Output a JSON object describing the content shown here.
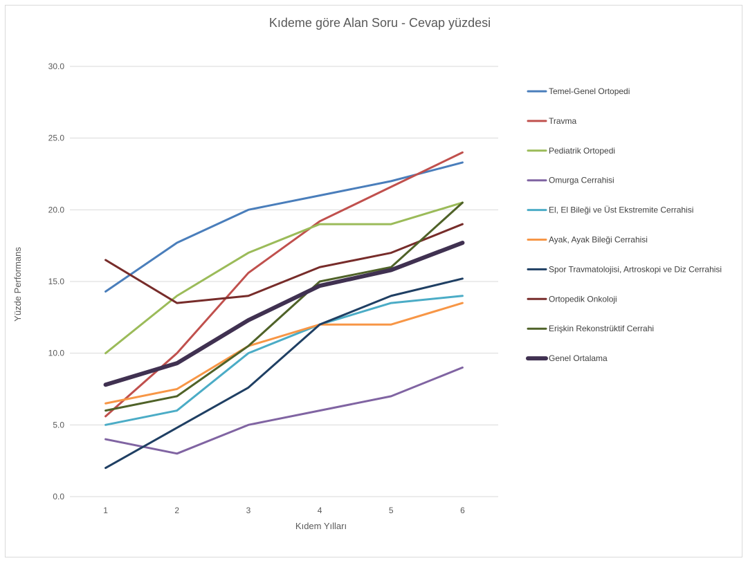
{
  "chart_data": {
    "type": "line",
    "title": "Kıdeme göre Alan Soru - Cevap yüzdesi",
    "xlabel": "Kıdem Yılları",
    "ylabel": "Yüzde Performans",
    "x": [
      "1",
      "2",
      "3",
      "4",
      "5",
      "6"
    ],
    "ylim": [
      0,
      30
    ],
    "yticks": [
      "0.0",
      "5.0",
      "10.0",
      "15.0",
      "20.0",
      "25.0",
      "30.0"
    ],
    "grid": true,
    "legend": "right",
    "series": [
      {
        "name": "Temel-Genel Ortopedi",
        "color": "#4a7ebb",
        "width": "normal",
        "values": [
          14.3,
          17.7,
          20.0,
          21.0,
          22.0,
          23.3
        ]
      },
      {
        "name": "Travma",
        "color": "#c0504d",
        "width": "normal",
        "values": [
          5.6,
          10.0,
          15.6,
          19.2,
          21.6,
          24.0
        ]
      },
      {
        "name": "Pediatrik Ortopedi",
        "color": "#9bbb59",
        "width": "normal",
        "values": [
          10.0,
          14.0,
          17.0,
          19.0,
          19.0,
          20.5
        ]
      },
      {
        "name": "Omurga Cerrahisi",
        "color": "#8064a2",
        "width": "normal",
        "values": [
          4.0,
          3.0,
          5.0,
          6.0,
          7.0,
          9.0
        ]
      },
      {
        "name": "El, El Bileği ve Üst Ekstremite Cerrahisi",
        "color": "#4bacc6",
        "width": "normal",
        "values": [
          5.0,
          6.0,
          10.0,
          12.0,
          13.5,
          14.0
        ]
      },
      {
        "name": "Ayak, Ayak Bileği Cerrahisi",
        "color": "#f79646",
        "width": "normal",
        "values": [
          6.5,
          7.5,
          10.5,
          12.0,
          12.0,
          13.5
        ]
      },
      {
        "name": "Spor Travmatolojisi,  Artroskopi ve Diz Cerrahisi",
        "color": "#1f3f63",
        "width": "normal",
        "values": [
          2.0,
          4.8,
          7.6,
          12.0,
          14.0,
          15.2
        ]
      },
      {
        "name": "Ortopedik Onkoloji",
        "color": "#772c2a",
        "width": "normal",
        "values": [
          16.5,
          13.5,
          14.0,
          16.0,
          17.0,
          19.0
        ]
      },
      {
        "name": "Erişkin Rekonstrüktif Cerrahi",
        "color": "#4f6228",
        "width": "normal",
        "values": [
          6.0,
          7.0,
          10.5,
          15.0,
          16.0,
          20.5
        ]
      },
      {
        "name": "Genel Ortalama",
        "color": "#403151",
        "width": "thick",
        "values": [
          7.8,
          9.3,
          12.3,
          14.7,
          15.8,
          17.7
        ]
      }
    ]
  }
}
